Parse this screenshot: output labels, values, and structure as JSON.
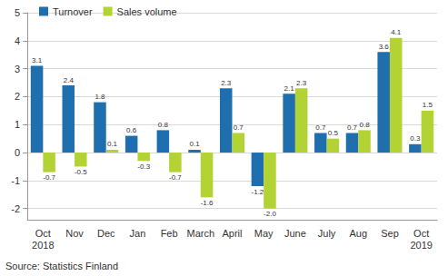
{
  "chart_data": {
    "type": "bar",
    "categories": [
      "Oct\n2018",
      "Nov",
      "Dec",
      "Jan",
      "Feb",
      "March",
      "April",
      "May",
      "June",
      "July",
      "Aug",
      "Sep",
      "Oct\n2019"
    ],
    "series": [
      {
        "name": "Turnover",
        "color": "#1f6fae",
        "values": [
          3.1,
          2.4,
          1.8,
          0.6,
          0.8,
          0.1,
          2.3,
          -1.2,
          2.1,
          0.7,
          0.7,
          3.6,
          0.3
        ],
        "value_labels": [
          "3.1",
          "2.4",
          "1.8",
          "0.6",
          "0.8",
          "0.1",
          "2.3",
          "-1.2",
          "2.1",
          "0.7",
          "0.7",
          "3.6",
          "0.3"
        ]
      },
      {
        "name": "Sales volume",
        "color": "#b3d335",
        "values": [
          -0.7,
          -0.5,
          0.1,
          -0.3,
          -0.7,
          -1.6,
          0.7,
          -2.0,
          2.3,
          0.5,
          0.8,
          4.1,
          1.5
        ],
        "value_labels": [
          "-0.7",
          "-0.5",
          "0.1",
          "-0.3",
          "-0.7",
          "-1.6",
          "0.7",
          "-2.0",
          "2.3",
          "0.5",
          "0.8",
          "4.1",
          "1.5"
        ]
      }
    ],
    "ylim": [
      -2.4,
      5
    ],
    "yticks": [
      -2,
      -1,
      0,
      1,
      2,
      3,
      4,
      5
    ],
    "grid": true,
    "legend": "top-left",
    "data_labels": true,
    "source": "Source: Statistics Finland"
  }
}
